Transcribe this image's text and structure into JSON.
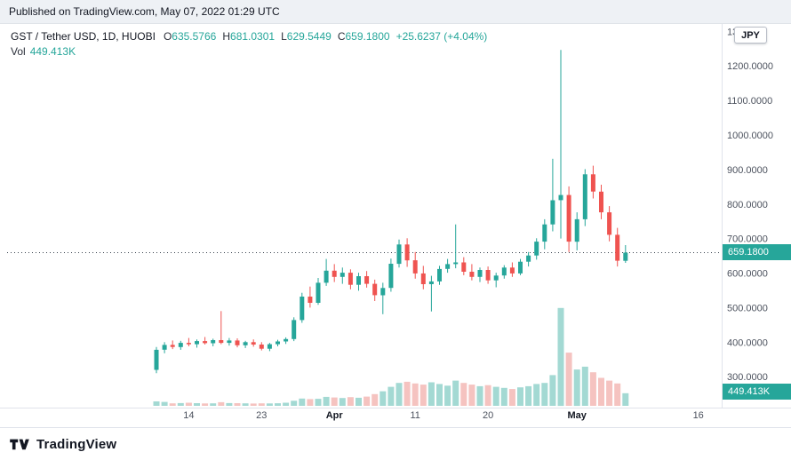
{
  "published_bar": {
    "text": "Published on TradingView.com, May 07, 2022 01:29 UTC"
  },
  "header": {
    "symbol_title": "GST / Tether USD, 1D, HUOBI",
    "ohlc": {
      "o_label": "O",
      "o": "635.5766",
      "h_label": "H",
      "h": "681.0301",
      "l_label": "L",
      "l": "629.5449",
      "c_label": "C",
      "c": "659.1800",
      "change": "+25.6237 (+4.04%)"
    },
    "volume_label": "Vol",
    "volume_value": "449.413K"
  },
  "currency_button": {
    "label": "JPY"
  },
  "y_axis": {
    "labels": [
      {
        "text": "1300.00",
        "price": 1300
      },
      {
        "text": "1200.0000",
        "price": 1200
      },
      {
        "text": "1100.0000",
        "price": 1100
      },
      {
        "text": "1000.0000",
        "price": 1000
      },
      {
        "text": "900.0000",
        "price": 900
      },
      {
        "text": "800.0000",
        "price": 800
      },
      {
        "text": "700.0000",
        "price": 700
      },
      {
        "text": "600.0000",
        "price": 600
      },
      {
        "text": "500.0000",
        "price": 500
      },
      {
        "text": "400.0000",
        "price": 400
      },
      {
        "text": "300.0000",
        "price": 300
      }
    ],
    "price_badge": {
      "text": "659.1800",
      "price": 659.18
    },
    "volume_badge": {
      "text": "449.413K"
    }
  },
  "x_axis": {
    "ticks": [
      {
        "label": "14",
        "index": 4,
        "major": false
      },
      {
        "label": "23",
        "index": 13,
        "major": false
      },
      {
        "label": "Apr",
        "index": 22,
        "major": true
      },
      {
        "label": "11",
        "index": 32,
        "major": false
      },
      {
        "label": "20",
        "index": 41,
        "major": false
      },
      {
        "label": "May",
        "index": 52,
        "major": true
      },
      {
        "label": "16",
        "index": 67,
        "major": false
      }
    ]
  },
  "footer": {
    "brand": "TradingView"
  },
  "colors": {
    "up": "#26a69a",
    "down": "#ef5350",
    "vol_up": "#a3d9d3",
    "vol_down": "#f5c3c0",
    "badge": "#26a69a",
    "last_price_line": "#39424e",
    "axis_text": "#4c525e",
    "separator": "#e0e3eb"
  },
  "chart_data": {
    "type": "candlestick",
    "symbol": "GST / Tether USD",
    "interval": "1D",
    "exchange": "HUOBI",
    "quote_toggle": "JPY",
    "price_line": 659.18,
    "ylim": [
      250,
      1310
    ],
    "x_range": [
      "Mar 10, 2022",
      "May 16, 2022"
    ],
    "volume_unit": "K",
    "last": {
      "open": 635.5766,
      "high": 681.0301,
      "low": 629.5449,
      "close": 659.18,
      "change": 25.6237,
      "change_pct": 4.04,
      "volume": "449.413K"
    },
    "columns": [
      "date",
      "open",
      "high",
      "low",
      "close",
      "volume_k"
    ],
    "candles": [
      [
        "Mar 10",
        320,
        386,
        310,
        378,
        160
      ],
      [
        "Mar 11",
        378,
        400,
        368,
        392,
        140
      ],
      [
        "Mar 12",
        392,
        405,
        380,
        386,
        90
      ],
      [
        "Mar 13",
        386,
        404,
        378,
        398,
        100
      ],
      [
        "Mar 14",
        398,
        412,
        388,
        394,
        110
      ],
      [
        "Mar 15",
        394,
        408,
        384,
        403,
        95
      ],
      [
        "Mar 16",
        403,
        415,
        393,
        397,
        85
      ],
      [
        "Mar 17",
        397,
        410,
        388,
        406,
        90
      ],
      [
        "Mar 18",
        406,
        490,
        394,
        398,
        130
      ],
      [
        "Mar 19",
        398,
        412,
        390,
        405,
        100
      ],
      [
        "Mar 20",
        405,
        411,
        385,
        391,
        95
      ],
      [
        "Mar 21",
        391,
        404,
        383,
        400,
        88
      ],
      [
        "Mar 22",
        400,
        408,
        387,
        393,
        82
      ],
      [
        "Mar 23",
        393,
        400,
        376,
        381,
        90
      ],
      [
        "Mar 24",
        381,
        398,
        374,
        394,
        85
      ],
      [
        "Mar 25",
        394,
        407,
        388,
        402,
        92
      ],
      [
        "Mar 26",
        402,
        414,
        395,
        409,
        110
      ],
      [
        "Mar 27",
        409,
        472,
        403,
        464,
        180
      ],
      [
        "Mar 28",
        464,
        543,
        456,
        532,
        260
      ],
      [
        "Mar 29",
        532,
        561,
        500,
        514,
        240
      ],
      [
        "Mar 30",
        514,
        586,
        508,
        572,
        250
      ],
      [
        "Mar 31",
        572,
        641,
        563,
        607,
        320
      ],
      [
        "Apr 1",
        607,
        626,
        574,
        589,
        300
      ],
      [
        "Apr 2",
        589,
        616,
        569,
        601,
        280
      ],
      [
        "Apr 3",
        601,
        611,
        553,
        566,
        310
      ],
      [
        "Apr 4",
        566,
        601,
        549,
        591,
        290
      ],
      [
        "Apr 5",
        591,
        606,
        558,
        569,
        330
      ],
      [
        "Apr 6",
        569,
        581,
        519,
        536,
        420
      ],
      [
        "Apr 7",
        536,
        572,
        481,
        557,
        520
      ],
      [
        "Apr 8",
        557,
        642,
        546,
        627,
        680
      ],
      [
        "Apr 9",
        627,
        697,
        616,
        683,
        820
      ],
      [
        "Apr 10",
        683,
        701,
        618,
        637,
        860
      ],
      [
        "Apr 11",
        637,
        661,
        584,
        599,
        800
      ],
      [
        "Apr 12",
        599,
        621,
        553,
        568,
        760
      ],
      [
        "Apr 13",
        568,
        592,
        489,
        576,
        840
      ],
      [
        "Apr 14",
        576,
        621,
        566,
        612,
        780
      ],
      [
        "Apr 15",
        612,
        641,
        601,
        626,
        720
      ],
      [
        "Apr 16",
        626,
        741,
        614,
        631,
        900
      ],
      [
        "Apr 17",
        631,
        646,
        594,
        604,
        820
      ],
      [
        "Apr 18",
        604,
        626,
        579,
        589,
        760
      ],
      [
        "Apr 19",
        589,
        616,
        574,
        609,
        700
      ],
      [
        "Apr 20",
        609,
        619,
        569,
        579,
        740
      ],
      [
        "Apr 21",
        579,
        601,
        559,
        593,
        680
      ],
      [
        "Apr 22",
        593,
        623,
        584,
        616,
        640
      ],
      [
        "Apr 23",
        616,
        631,
        589,
        599,
        600
      ],
      [
        "Apr 24",
        599,
        641,
        594,
        633,
        660
      ],
      [
        "Apr 25",
        633,
        661,
        619,
        651,
        700
      ],
      [
        "Apr 26",
        651,
        701,
        639,
        691,
        780
      ],
      [
        "Apr 27",
        691,
        756,
        669,
        741,
        820
      ],
      [
        "Apr 28",
        741,
        931,
        721,
        811,
        1100
      ],
      [
        "Apr 29",
        811,
        1246,
        700,
        826,
        3500
      ],
      [
        "Apr 30",
        826,
        851,
        661,
        691,
        1900
      ],
      [
        "May 1",
        691,
        776,
        666,
        756,
        1300
      ],
      [
        "May 2",
        756,
        901,
        736,
        886,
        1400
      ],
      [
        "May 3",
        886,
        911,
        816,
        836,
        1200
      ],
      [
        "May 4",
        836,
        856,
        756,
        776,
        1000
      ],
      [
        "May 5",
        776,
        794,
        692,
        711,
        900
      ],
      [
        "May 6",
        711,
        731,
        619,
        636,
        800
      ],
      [
        "May 7",
        635.5766,
        681.0301,
        629.5449,
        659.18,
        449.413
      ]
    ]
  }
}
